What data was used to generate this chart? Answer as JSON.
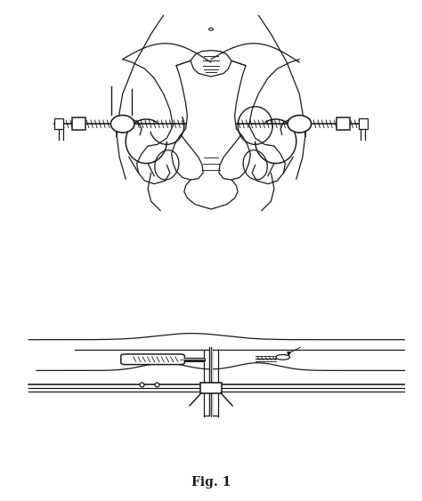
{
  "title": "Fig. 1",
  "bg_color": "#ffffff",
  "line_color": "#1a1a1a",
  "fig_width": 4.74,
  "fig_height": 5.63,
  "dpi": 100,
  "top_panel": {
    "xlim": [
      0,
      10
    ],
    "ylim": [
      0,
      10
    ]
  },
  "bottom_panel": {
    "xlim": [
      0,
      10
    ],
    "ylim": [
      0,
      10
    ]
  }
}
